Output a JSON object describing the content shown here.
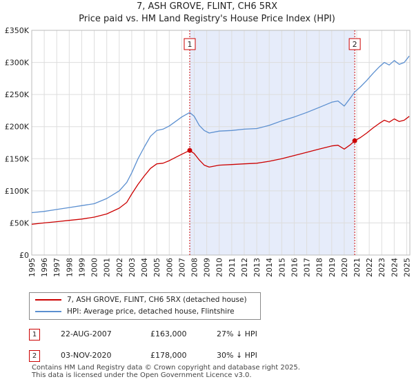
{
  "title_line1": "7, ASH GROVE, FLINT, CH6 5RX",
  "title_line2": "Price paid vs. HM Land Registry's House Price Index (HPI)",
  "legend": {
    "property_label": "7, ASH GROVE, FLINT, CH6 5RX (detached house)",
    "hpi_label": "HPI: Average price, detached house, Flintshire"
  },
  "colors": {
    "property": "#cc0000",
    "hpi": "#5b8fd0",
    "shade": "#e6ecfa",
    "grid": "#dddddd"
  },
  "sales": [
    {
      "num": "1",
      "date": "22-AUG-2007",
      "price": "£163,000",
      "hpi_diff": "27% ↓ HPI"
    },
    {
      "num": "2",
      "date": "03-NOV-2020",
      "price": "£178,000",
      "hpi_diff": "30% ↓ HPI"
    }
  ],
  "footer_line1": "Contains HM Land Registry data © Crown copyright and database right 2025.",
  "footer_line2": "This data is licensed under the Open Government Licence v3.0.",
  "chart_data": {
    "type": "line",
    "xlim": [
      1995.0,
      2025.25
    ],
    "ylim": [
      0,
      350000
    ],
    "yticks": [
      0,
      50000,
      100000,
      150000,
      200000,
      250000,
      300000,
      350000
    ],
    "ytick_labels": [
      "£0",
      "£50K",
      "£100K",
      "£150K",
      "£200K",
      "£250K",
      "£300K",
      "£350K"
    ],
    "xticks": [
      1995,
      1996,
      1997,
      1998,
      1999,
      2000,
      2001,
      2002,
      2003,
      2004,
      2005,
      2006,
      2007,
      2008,
      2009,
      2010,
      2011,
      2012,
      2013,
      2014,
      2015,
      2016,
      2017,
      2018,
      2019,
      2020,
      2021,
      2022,
      2023,
      2024,
      2025
    ],
    "shaded_range": [
      2007.64,
      2020.84
    ],
    "markers": [
      {
        "label": "1",
        "x": 2007.64,
        "y": 163000
      },
      {
        "label": "2",
        "x": 2020.84,
        "y": 178000
      }
    ],
    "series": [
      {
        "name": "7, ASH GROVE, FLINT, CH6 5RX (detached house)",
        "x": [
          1995.0,
          1996.0,
          1997.0,
          1998.0,
          1999.0,
          2000.0,
          2001.0,
          2002.0,
          2002.6,
          2003.0,
          2003.5,
          2004.0,
          2004.5,
          2005.0,
          2005.5,
          2006.0,
          2006.5,
          2007.0,
          2007.64,
          2008.0,
          2008.4,
          2008.8,
          2009.2,
          2010.0,
          2011.0,
          2012.0,
          2013.0,
          2014.0,
          2015.0,
          2016.0,
          2017.0,
          2018.0,
          2019.0,
          2019.5,
          2020.0,
          2020.5,
          2020.84,
          2021.3,
          2021.8,
          2022.3,
          2022.8,
          2023.2,
          2023.6,
          2024.0,
          2024.4,
          2024.8,
          2025.2
        ],
        "values": [
          48000,
          50000,
          52000,
          54000,
          56000,
          59000,
          64000,
          73000,
          82000,
          95000,
          110000,
          123000,
          135000,
          142000,
          143000,
          147000,
          152000,
          157000,
          163000,
          158000,
          148000,
          140000,
          137000,
          140000,
          141000,
          142000,
          143000,
          146000,
          150000,
          155000,
          160000,
          165000,
          170000,
          171000,
          165000,
          172000,
          178000,
          183000,
          190000,
          198000,
          205000,
          210000,
          207000,
          212000,
          208000,
          210000,
          216000
        ]
      },
      {
        "name": "HPI: Average price, detached house, Flintshire",
        "x": [
          1995.0,
          1996.0,
          1997.0,
          1998.0,
          1999.0,
          2000.0,
          2001.0,
          2002.0,
          2002.6,
          2003.0,
          2003.5,
          2004.0,
          2004.5,
          2005.0,
          2005.5,
          2006.0,
          2006.5,
          2007.0,
          2007.64,
          2008.0,
          2008.4,
          2008.8,
          2009.2,
          2010.0,
          2011.0,
          2012.0,
          2013.0,
          2014.0,
          2015.0,
          2016.0,
          2017.0,
          2018.0,
          2019.0,
          2019.5,
          2020.0,
          2020.5,
          2020.84,
          2021.3,
          2021.8,
          2022.3,
          2022.8,
          2023.2,
          2023.6,
          2024.0,
          2024.4,
          2024.8,
          2025.2
        ],
        "values": [
          66000,
          68000,
          71000,
          74000,
          77000,
          80000,
          88000,
          100000,
          113000,
          128000,
          150000,
          168000,
          185000,
          194000,
          196000,
          201000,
          208000,
          215000,
          222000,
          216000,
          202000,
          194000,
          190000,
          193000,
          194000,
          196000,
          197000,
          202000,
          209000,
          215000,
          222000,
          230000,
          238000,
          240000,
          232000,
          245000,
          254000,
          262000,
          272000,
          283000,
          293000,
          300000,
          296000,
          303000,
          297000,
          300000,
          310000
        ]
      }
    ]
  }
}
